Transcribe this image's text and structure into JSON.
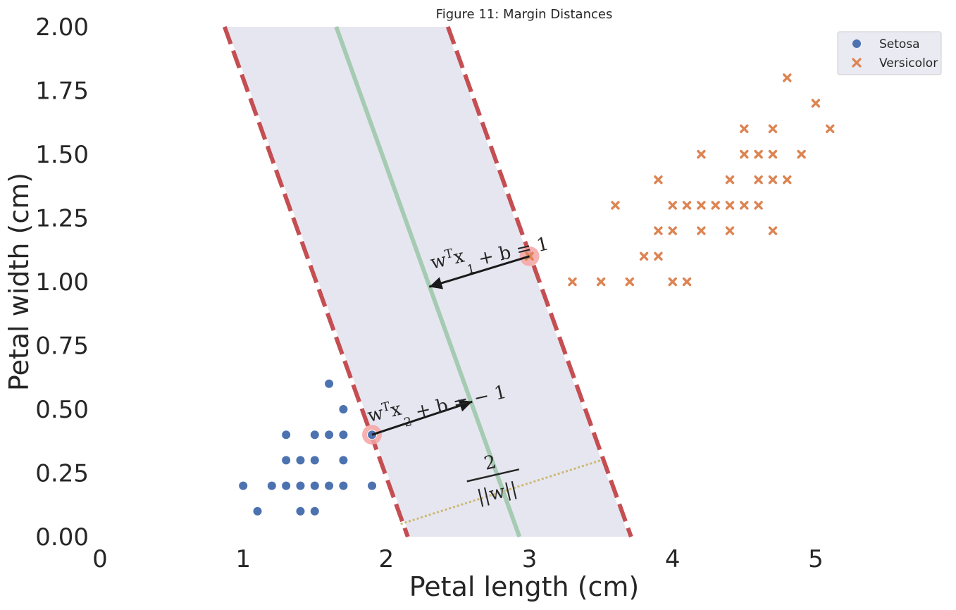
{
  "chart_data": {
    "type": "scatter",
    "title": "Figure 11: Margin Distances",
    "xlabel": "Petal length (cm)",
    "ylabel": "Petal width (cm)",
    "xlim": [
      0,
      5.5
    ],
    "ylim": [
      0,
      2.0
    ],
    "xticks": [
      "0",
      "1",
      "2",
      "3",
      "4",
      "5"
    ],
    "xtick_values": [
      0,
      1,
      2,
      3,
      4,
      5
    ],
    "yticks": [
      "0.00",
      "0.25",
      "0.50",
      "0.75",
      "1.00",
      "1.25",
      "1.50",
      "1.75",
      "2.00"
    ],
    "ytick_values": [
      0,
      0.25,
      0.5,
      0.75,
      1.0,
      1.25,
      1.5,
      1.75,
      2.0
    ],
    "grid": false,
    "legend_position": "top-right",
    "series": [
      {
        "name": "Setosa",
        "marker": "circle",
        "color": "#4c72b0",
        "points": [
          [
            1.0,
            0.2
          ],
          [
            1.1,
            0.1
          ],
          [
            1.2,
            0.2
          ],
          [
            1.3,
            0.4
          ],
          [
            1.3,
            0.3
          ],
          [
            1.3,
            0.2
          ],
          [
            1.4,
            0.3
          ],
          [
            1.4,
            0.2
          ],
          [
            1.4,
            0.1
          ],
          [
            1.5,
            0.4
          ],
          [
            1.5,
            0.3
          ],
          [
            1.5,
            0.2
          ],
          [
            1.5,
            0.1
          ],
          [
            1.6,
            0.6
          ],
          [
            1.6,
            0.4
          ],
          [
            1.6,
            0.2
          ],
          [
            1.7,
            0.5
          ],
          [
            1.7,
            0.4
          ],
          [
            1.7,
            0.3
          ],
          [
            1.7,
            0.2
          ],
          [
            1.9,
            0.4
          ],
          [
            1.9,
            0.2
          ]
        ]
      },
      {
        "name": "Versicolor",
        "marker": "x",
        "color": "#dd8452",
        "points": [
          [
            3.0,
            1.1
          ],
          [
            3.3,
            1.0
          ],
          [
            3.5,
            1.0
          ],
          [
            3.6,
            1.3
          ],
          [
            3.7,
            1.0
          ],
          [
            3.8,
            1.1
          ],
          [
            3.9,
            1.1
          ],
          [
            3.9,
            1.2
          ],
          [
            3.9,
            1.4
          ],
          [
            4.0,
            1.0
          ],
          [
            4.0,
            1.2
          ],
          [
            4.0,
            1.3
          ],
          [
            4.1,
            1.0
          ],
          [
            4.1,
            1.3
          ],
          [
            4.2,
            1.2
          ],
          [
            4.2,
            1.3
          ],
          [
            4.2,
            1.5
          ],
          [
            4.3,
            1.3
          ],
          [
            4.4,
            1.2
          ],
          [
            4.4,
            1.3
          ],
          [
            4.4,
            1.4
          ],
          [
            4.5,
            1.3
          ],
          [
            4.5,
            1.5
          ],
          [
            4.5,
            1.6
          ],
          [
            4.6,
            1.3
          ],
          [
            4.6,
            1.4
          ],
          [
            4.6,
            1.5
          ],
          [
            4.7,
            1.2
          ],
          [
            4.7,
            1.4
          ],
          [
            4.7,
            1.5
          ],
          [
            4.7,
            1.6
          ],
          [
            4.8,
            1.4
          ],
          [
            4.8,
            1.8
          ],
          [
            4.9,
            1.5
          ],
          [
            5.0,
            1.7
          ],
          [
            5.1,
            1.6
          ]
        ]
      }
    ],
    "decision_boundary": {
      "color": "#8fc19e",
      "points": [
        [
          1.65,
          2.0
        ],
        [
          2.93,
          0.0
        ]
      ]
    },
    "margins": {
      "color": "#c44e52",
      "style": "dashed",
      "lines": [
        [
          [
            0.87,
            2.0
          ],
          [
            2.15,
            0.0
          ]
        ],
        [
          [
            2.43,
            2.0
          ],
          [
            3.71,
            0.0
          ]
        ]
      ]
    },
    "margin_band_color": "#e6e6f0",
    "support_vectors": {
      "color": "#f4a3a3",
      "points": [
        [
          1.9,
          0.4
        ],
        [
          3.0,
          1.1
        ]
      ]
    },
    "arrows": [
      {
        "from": [
          3.0,
          1.1
        ],
        "to": [
          2.3,
          0.98
        ]
      },
      {
        "from": [
          1.9,
          0.4
        ],
        "to": [
          2.6,
          0.53
        ]
      }
    ],
    "distance_line": {
      "color": "#ccb974",
      "style": "dotted",
      "from": [
        2.1,
        0.05
      ],
      "to": [
        3.5,
        0.3
      ]
    },
    "annotations": [
      {
        "base": "w",
        "sup": "T",
        "var": "x",
        "sub": "1",
        "rest": " + b = 1",
        "at": [
          2.32,
          1.05
        ],
        "angle": -13
      },
      {
        "base": "w",
        "sup": "T",
        "var": "x",
        "sub": "2",
        "rest": " + b = − 1",
        "at": [
          1.88,
          0.45
        ],
        "angle": -13
      },
      {
        "numerator": "2",
        "denominator": "||w||",
        "at": [
          2.75,
          0.23
        ],
        "angle": -13
      }
    ]
  }
}
